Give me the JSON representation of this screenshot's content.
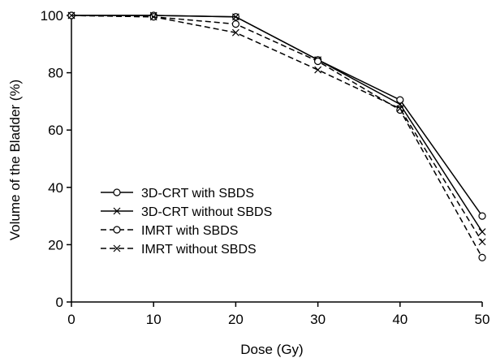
{
  "chart_data": {
    "type": "line",
    "title": "",
    "xlabel": "Dose (Gy)",
    "ylabel": "Volume of the Bladder (%)",
    "xlim": [
      0,
      50
    ],
    "ylim": [
      0,
      100
    ],
    "xticks": [
      0,
      10,
      20,
      30,
      40,
      50
    ],
    "yticks": [
      0,
      20,
      40,
      60,
      80,
      100
    ],
    "grid": false,
    "legend_position": "lower-left",
    "x": [
      0,
      10,
      20,
      30,
      40,
      50
    ],
    "series": [
      {
        "name": "3D-CRT with SBDS",
        "values": [
          100,
          100,
          99.5,
          84.5,
          70.5,
          30
        ],
        "line": "solid",
        "marker": "circle",
        "color": "#000000"
      },
      {
        "name": "3D-CRT without SBDS",
        "values": [
          100,
          100,
          99.5,
          84.5,
          69,
          24.5
        ],
        "line": "solid",
        "marker": "x",
        "color": "#000000"
      },
      {
        "name": "IMRT with SBDS",
        "values": [
          100,
          99.5,
          97,
          84,
          67,
          15.5
        ],
        "line": "dashed",
        "marker": "circle",
        "color": "#000000"
      },
      {
        "name": "IMRT without SBDS",
        "values": [
          100,
          99.5,
          94,
          81,
          67.5,
          21
        ],
        "line": "dashed",
        "marker": "x",
        "color": "#000000"
      }
    ]
  }
}
